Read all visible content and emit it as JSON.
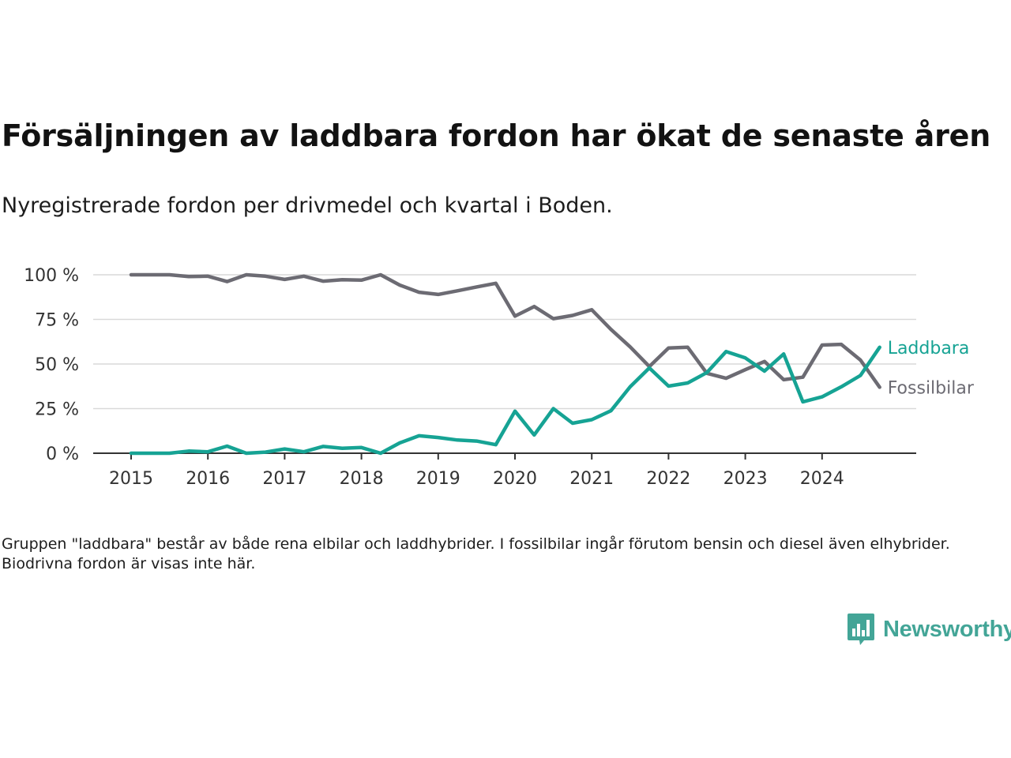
{
  "title": "Försäljningen av laddbara fordon har ökat de senaste åren",
  "subtitle": "Nyregistrerade fordon per drivmedel och kvartal i Boden.",
  "footnote": "Gruppen \"laddbara\" består av både rena elbilar och laddhybrider. I fossilbilar ingår förutom bensin och diesel även elhybrider. Biodrivna fordon är visas inte här.",
  "brand": {
    "name": "Newsworthy",
    "color": "#43a597",
    "icon": "chart-logo-icon"
  },
  "chart_data": {
    "type": "line",
    "title": "Försäljningen av laddbara fordon har ökat de senaste åren",
    "subtitle": "Nyregistrerade fordon per drivmedel och kvartal i Boden.",
    "xlabel": "",
    "ylabel": "",
    "ylim": [
      0,
      100
    ],
    "y_ticks": [
      0,
      25,
      50,
      75,
      100
    ],
    "y_tick_labels": [
      "0 %",
      "25 %",
      "50 %",
      "75 %",
      "100 %"
    ],
    "x_range": [
      2015,
      2025
    ],
    "x_ticks": [
      2015,
      2016,
      2017,
      2018,
      2019,
      2020,
      2021,
      2022,
      2023,
      2024
    ],
    "x_tick_labels": [
      "2015",
      "2016",
      "2017",
      "2018",
      "2019",
      "2020",
      "2021",
      "2022",
      "2023",
      "2024"
    ],
    "grid": "horizontal",
    "legend": "direct labels at line ends (right)",
    "x": [
      "2015 Q1",
      "2015 Q2",
      "2015 Q3",
      "2015 Q4",
      "2016 Q1",
      "2016 Q2",
      "2016 Q3",
      "2016 Q4",
      "2017 Q1",
      "2017 Q2",
      "2017 Q3",
      "2017 Q4",
      "2018 Q1",
      "2018 Q2",
      "2018 Q3",
      "2018 Q4",
      "2019 Q1",
      "2019 Q2",
      "2019 Q3",
      "2019 Q4",
      "2020 Q1",
      "2020 Q2",
      "2020 Q3",
      "2020 Q4",
      "2021 Q1",
      "2021 Q2",
      "2021 Q3",
      "2021 Q4",
      "2022 Q1",
      "2022 Q2",
      "2022 Q3",
      "2022 Q4",
      "2023 Q1",
      "2023 Q2",
      "2023 Q3",
      "2023 Q4",
      "2024 Q1",
      "2024 Q2",
      "2024 Q3",
      "2024 Q4"
    ],
    "series": [
      {
        "name": "Laddbara",
        "color": "#16a394",
        "values": [
          0,
          0,
          0,
          1.2,
          0.8,
          4,
          0,
          0.6,
          2.4,
          0.8,
          3.8,
          2.8,
          3.2,
          0,
          5.8,
          9.8,
          8.8,
          7.4,
          6.8,
          4.8,
          23.6,
          10.2,
          25,
          16.8,
          18.8,
          23.8,
          37.2,
          47.8,
          37.6,
          39.4,
          45.2,
          57,
          53.4,
          46,
          55.6,
          28.8,
          31.6,
          37.2,
          43.6,
          59.4
        ]
      },
      {
        "name": "Fossilbilar",
        "color": "#6c6b73",
        "values": [
          100,
          100,
          100,
          99,
          99.2,
          96.2,
          100,
          99.2,
          97.4,
          99.2,
          96.4,
          97.2,
          97,
          100,
          94.2,
          90.2,
          89,
          91,
          93.2,
          95.2,
          76.8,
          82.2,
          75.4,
          77.2,
          80.4,
          69.4,
          59.6,
          48.6,
          59,
          59.4,
          44.8,
          42,
          46.8,
          51.4,
          41.2,
          42.6,
          60.6,
          61,
          52.2,
          37
        ]
      }
    ]
  }
}
